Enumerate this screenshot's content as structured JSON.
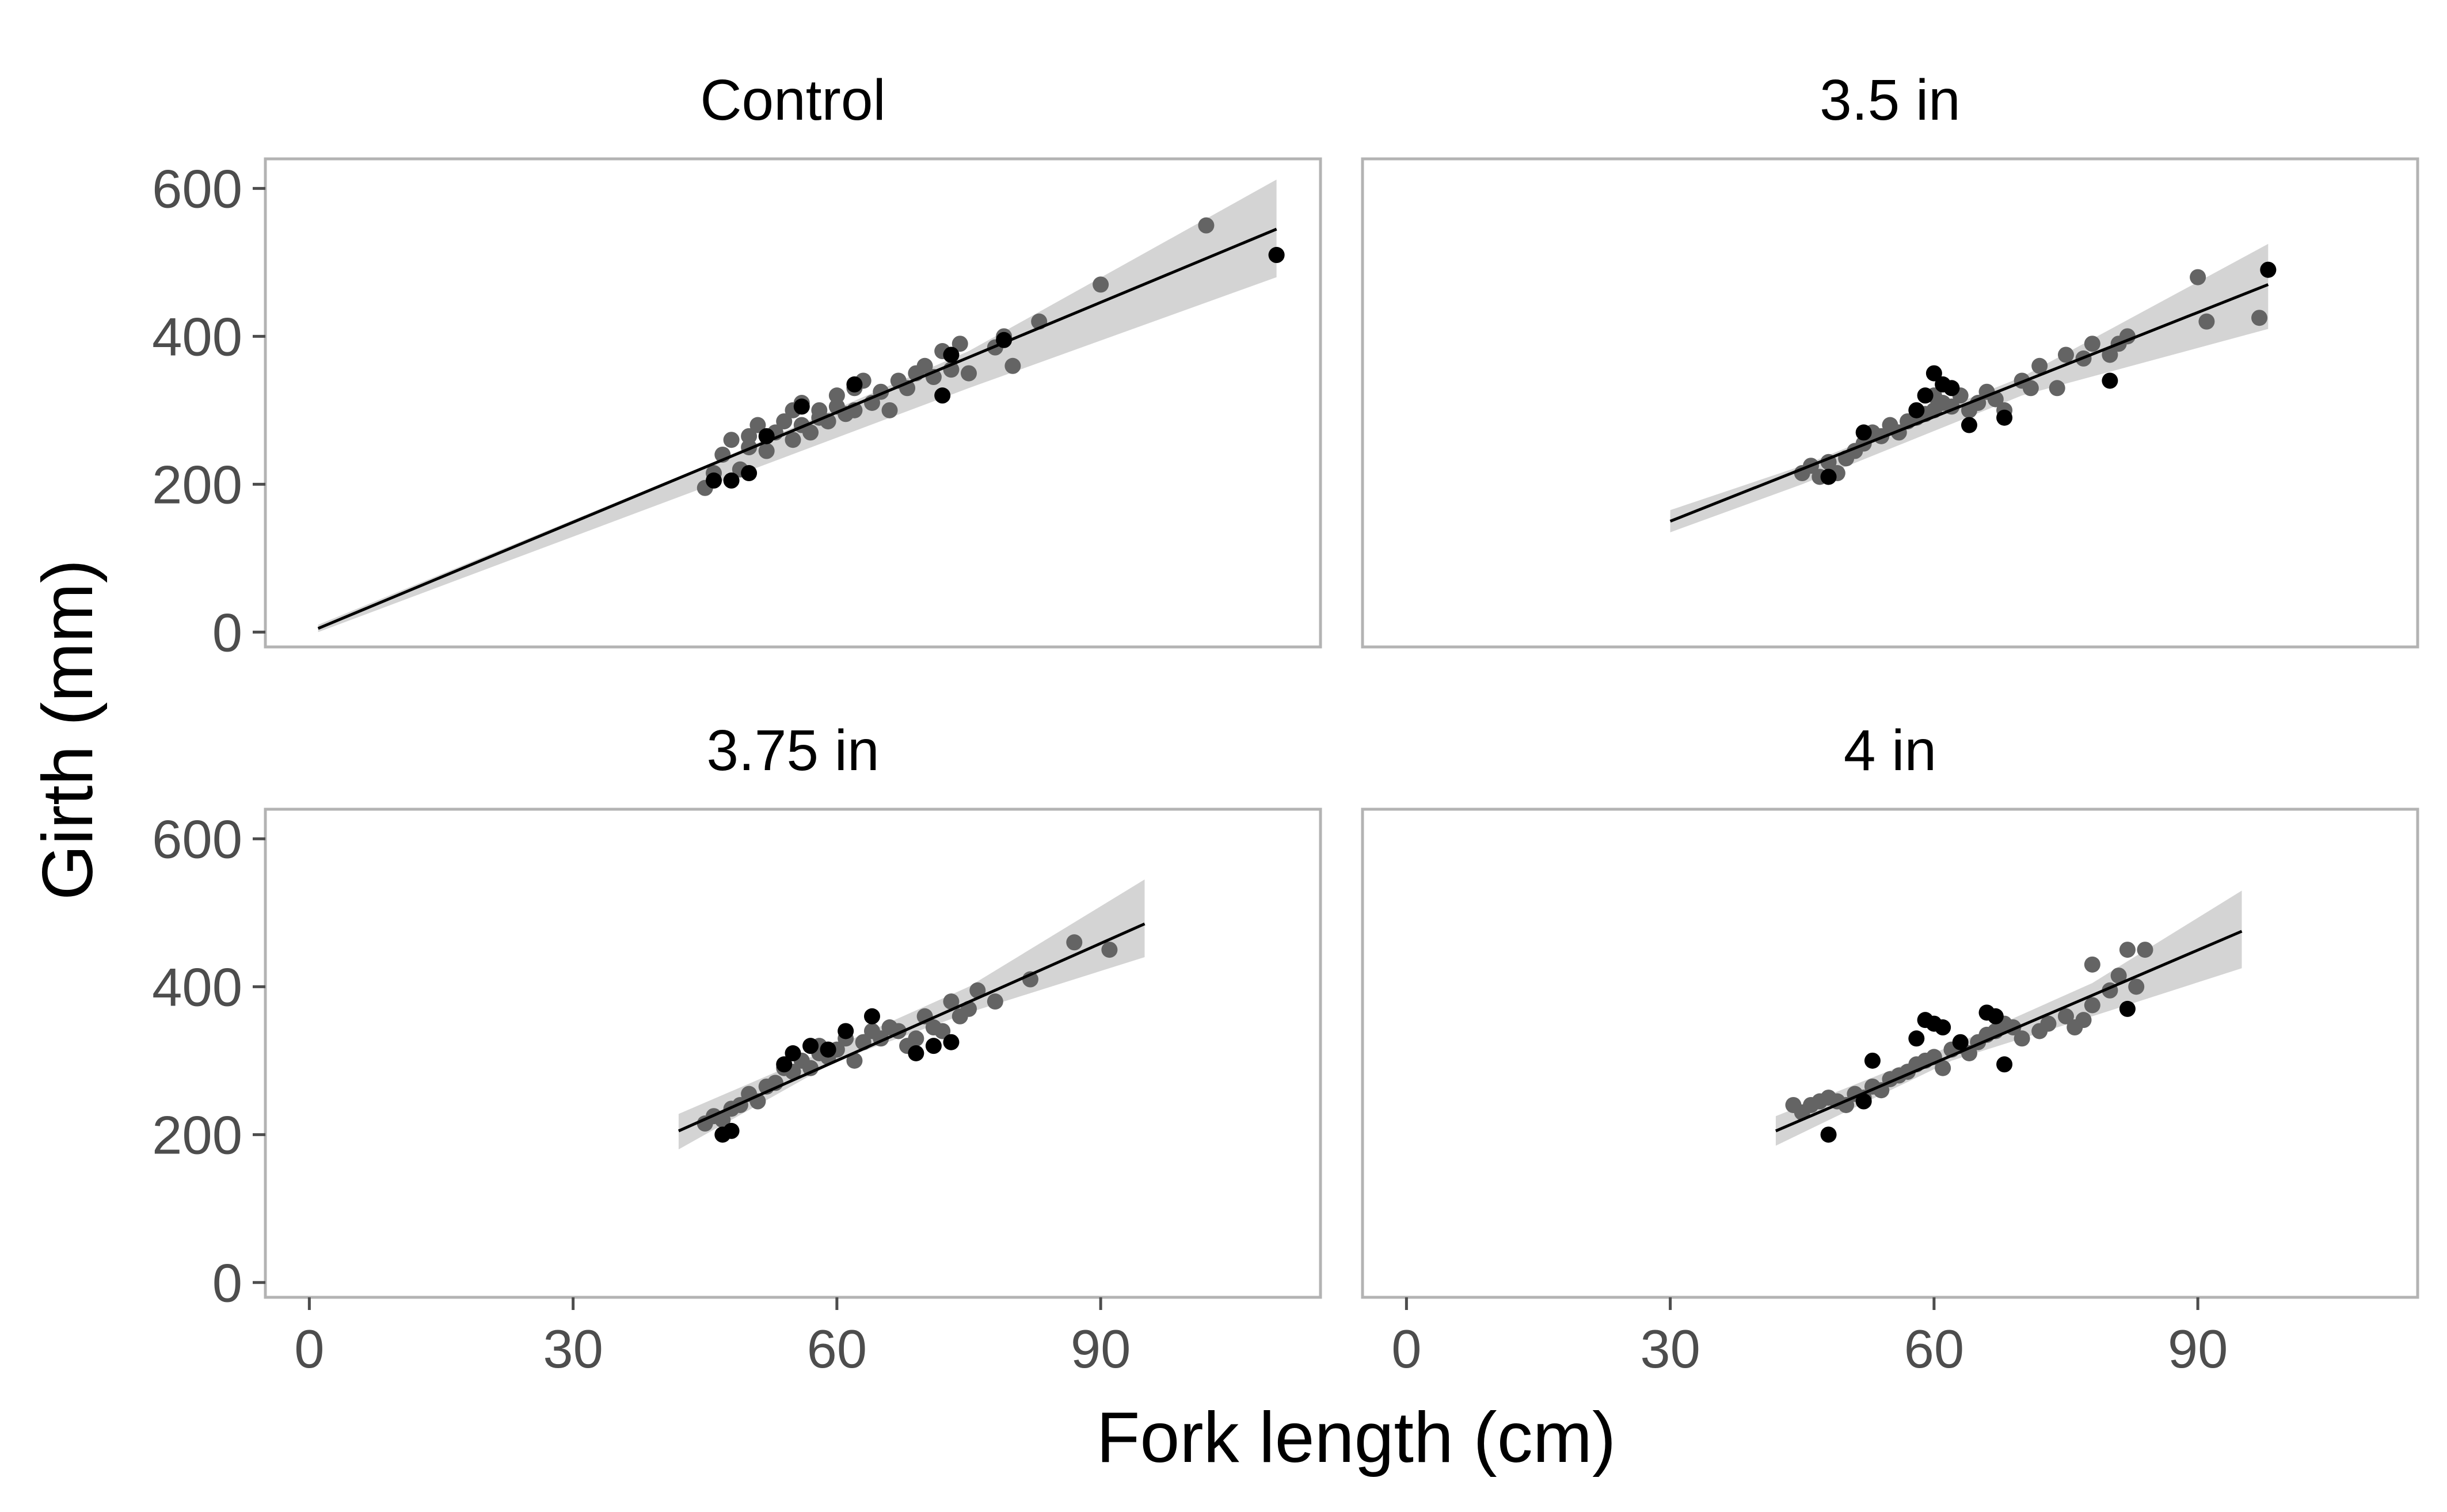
{
  "chart_data": {
    "type": "scatter",
    "xlabel": "Fork length (cm)",
    "ylabel": "Girth (mm)",
    "xlim": [
      -5,
      115
    ],
    "ylim": [
      -20,
      640
    ],
    "x_ticks": [
      0,
      30,
      60,
      90
    ],
    "y_ticks": [
      0,
      200,
      400,
      600
    ],
    "grid": false,
    "layout": "2x2 facet grid",
    "point_colors": [
      "#000000",
      "#646464"
    ],
    "band_color": "#d4d4d4",
    "line_color": "#000000",
    "panels": [
      {
        "title": "Control",
        "fit": {
          "x": [
            1,
            110
          ],
          "y": [
            5,
            545
          ]
        },
        "ribbon": {
          "x": [
            1,
            45,
            75,
            110
          ],
          "lower": [
            0,
            196,
            330,
            480
          ],
          "upper": [
            10,
            225,
            380,
            612
          ]
        },
        "points": [
          [
            45,
            195
          ],
          [
            46,
            215
          ],
          [
            47,
            240
          ],
          [
            48,
            260
          ],
          [
            49,
            220
          ],
          [
            50,
            250
          ],
          [
            50,
            265
          ],
          [
            51,
            280
          ],
          [
            52,
            245
          ],
          [
            53,
            270
          ],
          [
            54,
            285
          ],
          [
            55,
            260
          ],
          [
            55,
            300
          ],
          [
            56,
            280
          ],
          [
            56,
            310
          ],
          [
            57,
            270
          ],
          [
            58,
            300
          ],
          [
            58,
            290
          ],
          [
            59,
            285
          ],
          [
            60,
            305
          ],
          [
            60,
            320
          ],
          [
            61,
            295
          ],
          [
            62,
            300
          ],
          [
            62,
            330
          ],
          [
            63,
            340
          ],
          [
            64,
            310
          ],
          [
            65,
            325
          ],
          [
            66,
            300
          ],
          [
            67,
            340
          ],
          [
            68,
            330
          ],
          [
            69,
            350
          ],
          [
            70,
            360
          ],
          [
            71,
            345
          ],
          [
            72,
            380
          ],
          [
            73,
            355
          ],
          [
            74,
            390
          ],
          [
            75,
            350
          ],
          [
            78,
            385
          ],
          [
            79,
            400
          ],
          [
            80,
            360
          ],
          [
            83,
            420
          ],
          [
            90,
            470
          ],
          [
            102,
            550
          ],
          [
            110,
            510
          ]
        ],
        "dark_points": [
          [
            46,
            205
          ],
          [
            48,
            205
          ],
          [
            50,
            215
          ],
          [
            52,
            265
          ],
          [
            56,
            305
          ],
          [
            62,
            335
          ],
          [
            72,
            320
          ],
          [
            73,
            375
          ],
          [
            79,
            395
          ],
          [
            110,
            510
          ]
        ]
      },
      {
        "title": "3.5 in",
        "fit": {
          "x": [
            30,
            98
          ],
          "y": [
            150,
            470
          ]
        },
        "ribbon": {
          "x": [
            30,
            45,
            70,
            98
          ],
          "lower": [
            135,
            200,
            320,
            410
          ],
          "upper": [
            165,
            225,
            345,
            525
          ]
        },
        "points": [
          [
            45,
            215
          ],
          [
            46,
            225
          ],
          [
            47,
            210
          ],
          [
            48,
            230
          ],
          [
            49,
            215
          ],
          [
            50,
            235
          ],
          [
            51,
            245
          ],
          [
            52,
            255
          ],
          [
            53,
            270
          ],
          [
            54,
            265
          ],
          [
            55,
            280
          ],
          [
            56,
            270
          ],
          [
            57,
            285
          ],
          [
            58,
            290
          ],
          [
            59,
            295
          ],
          [
            60,
            300
          ],
          [
            60,
            320
          ],
          [
            61,
            310
          ],
          [
            62,
            305
          ],
          [
            63,
            320
          ],
          [
            64,
            300
          ],
          [
            65,
            310
          ],
          [
            66,
            325
          ],
          [
            67,
            315
          ],
          [
            68,
            300
          ],
          [
            70,
            340
          ],
          [
            71,
            330
          ],
          [
            72,
            360
          ],
          [
            74,
            330
          ],
          [
            75,
            375
          ],
          [
            77,
            370
          ],
          [
            78,
            390
          ],
          [
            80,
            375
          ],
          [
            81,
            390
          ],
          [
            82,
            400
          ],
          [
            90,
            480
          ],
          [
            91,
            420
          ],
          [
            97,
            425
          ],
          [
            98,
            490
          ]
        ],
        "dark_points": [
          [
            48,
            210
          ],
          [
            52,
            270
          ],
          [
            58,
            300
          ],
          [
            59,
            320
          ],
          [
            60,
            350
          ],
          [
            61,
            335
          ],
          [
            62,
            330
          ],
          [
            64,
            280
          ],
          [
            68,
            290
          ],
          [
            80,
            340
          ],
          [
            98,
            490
          ]
        ]
      },
      {
        "title": "3.75 in",
        "fit": {
          "x": [
            42,
            95
          ],
          "y": [
            205,
            485
          ]
        },
        "ribbon": {
          "x": [
            42,
            60,
            75,
            95
          ],
          "lower": [
            180,
            300,
            365,
            440
          ],
          "upper": [
            228,
            320,
            400,
            545
          ]
        },
        "points": [
          [
            45,
            215
          ],
          [
            46,
            225
          ],
          [
            47,
            220
          ],
          [
            48,
            235
          ],
          [
            49,
            240
          ],
          [
            50,
            255
          ],
          [
            51,
            245
          ],
          [
            52,
            265
          ],
          [
            53,
            270
          ],
          [
            54,
            290
          ],
          [
            55,
            285
          ],
          [
            56,
            300
          ],
          [
            57,
            290
          ],
          [
            58,
            310
          ],
          [
            58,
            320
          ],
          [
            59,
            305
          ],
          [
            60,
            315
          ],
          [
            61,
            330
          ],
          [
            62,
            300
          ],
          [
            63,
            325
          ],
          [
            64,
            340
          ],
          [
            65,
            330
          ],
          [
            66,
            345
          ],
          [
            67,
            340
          ],
          [
            68,
            320
          ],
          [
            69,
            330
          ],
          [
            70,
            360
          ],
          [
            71,
            345
          ],
          [
            72,
            340
          ],
          [
            73,
            380
          ],
          [
            74,
            360
          ],
          [
            75,
            370
          ],
          [
            76,
            395
          ],
          [
            78,
            380
          ],
          [
            82,
            410
          ],
          [
            87,
            460
          ],
          [
            91,
            450
          ]
        ],
        "dark_points": [
          [
            47,
            200
          ],
          [
            48,
            205
          ],
          [
            54,
            295
          ],
          [
            55,
            310
          ],
          [
            57,
            320
          ],
          [
            59,
            315
          ],
          [
            61,
            340
          ],
          [
            64,
            360
          ],
          [
            69,
            310
          ],
          [
            71,
            320
          ],
          [
            73,
            325
          ]
        ]
      },
      {
        "title": "4 in",
        "fit": {
          "x": [
            42,
            95
          ],
          "y": [
            205,
            475
          ]
        },
        "ribbon": {
          "x": [
            42,
            62,
            78,
            95
          ],
          "lower": [
            185,
            300,
            360,
            425
          ],
          "upper": [
            225,
            320,
            405,
            530
          ]
        },
        "points": [
          [
            44,
            240
          ],
          [
            45,
            230
          ],
          [
            46,
            240
          ],
          [
            47,
            245
          ],
          [
            48,
            250
          ],
          [
            49,
            245
          ],
          [
            50,
            240
          ],
          [
            51,
            255
          ],
          [
            52,
            250
          ],
          [
            53,
            265
          ],
          [
            54,
            260
          ],
          [
            55,
            275
          ],
          [
            56,
            280
          ],
          [
            57,
            285
          ],
          [
            58,
            295
          ],
          [
            59,
            300
          ],
          [
            60,
            305
          ],
          [
            61,
            290
          ],
          [
            62,
            315
          ],
          [
            63,
            320
          ],
          [
            64,
            310
          ],
          [
            65,
            325
          ],
          [
            66,
            335
          ],
          [
            67,
            340
          ],
          [
            68,
            350
          ],
          [
            69,
            345
          ],
          [
            70,
            330
          ],
          [
            72,
            340
          ],
          [
            73,
            350
          ],
          [
            75,
            360
          ],
          [
            76,
            345
          ],
          [
            77,
            355
          ],
          [
            78,
            375
          ],
          [
            78,
            430
          ],
          [
            80,
            395
          ],
          [
            81,
            415
          ],
          [
            82,
            450
          ],
          [
            83,
            400
          ],
          [
            84,
            450
          ]
        ],
        "dark_points": [
          [
            48,
            200
          ],
          [
            52,
            245
          ],
          [
            53,
            300
          ],
          [
            58,
            330
          ],
          [
            59,
            355
          ],
          [
            60,
            350
          ],
          [
            61,
            345
          ],
          [
            63,
            325
          ],
          [
            66,
            365
          ],
          [
            67,
            360
          ],
          [
            68,
            295
          ],
          [
            82,
            370
          ]
        ]
      }
    ]
  }
}
